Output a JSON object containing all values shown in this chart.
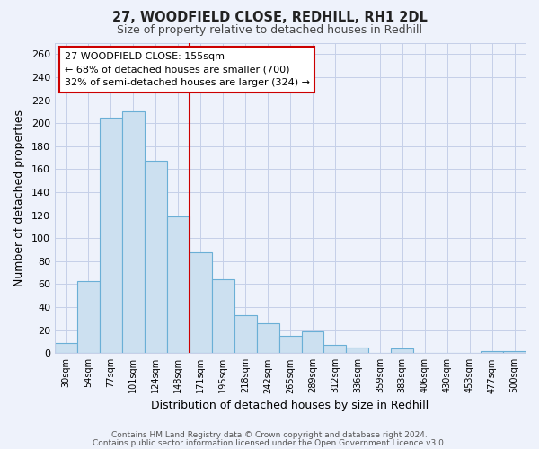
{
  "title": "27, WOODFIELD CLOSE, REDHILL, RH1 2DL",
  "subtitle": "Size of property relative to detached houses in Redhill",
  "xlabel": "Distribution of detached houses by size in Redhill",
  "ylabel": "Number of detached properties",
  "bar_labels": [
    "30sqm",
    "54sqm",
    "77sqm",
    "101sqm",
    "124sqm",
    "148sqm",
    "171sqm",
    "195sqm",
    "218sqm",
    "242sqm",
    "265sqm",
    "289sqm",
    "312sqm",
    "336sqm",
    "359sqm",
    "383sqm",
    "406sqm",
    "430sqm",
    "453sqm",
    "477sqm",
    "500sqm"
  ],
  "bar_values": [
    9,
    63,
    205,
    210,
    167,
    119,
    88,
    64,
    33,
    26,
    15,
    19,
    7,
    5,
    0,
    4,
    0,
    0,
    0,
    2,
    2
  ],
  "bar_color": "#cce0f0",
  "bar_edge_color": "#6aafd6",
  "ylim": [
    0,
    270
  ],
  "yticks": [
    0,
    20,
    40,
    60,
    80,
    100,
    120,
    140,
    160,
    180,
    200,
    220,
    240,
    260
  ],
  "property_line_color": "#cc0000",
  "property_line_x": 5.5,
  "annotation_text": "27 WOODFIELD CLOSE: 155sqm\n← 68% of detached houses are smaller (700)\n32% of semi-detached houses are larger (324) →",
  "annotation_box_color": "#ffffff",
  "annotation_box_edge": "#cc0000",
  "footer_line1": "Contains HM Land Registry data © Crown copyright and database right 2024.",
  "footer_line2": "Contains public sector information licensed under the Open Government Licence v3.0.",
  "background_color": "#eef2fb",
  "plot_background": "#eef2fb",
  "grid_color": "#c5cfe8",
  "title_color": "#222222",
  "subtitle_color": "#444444"
}
